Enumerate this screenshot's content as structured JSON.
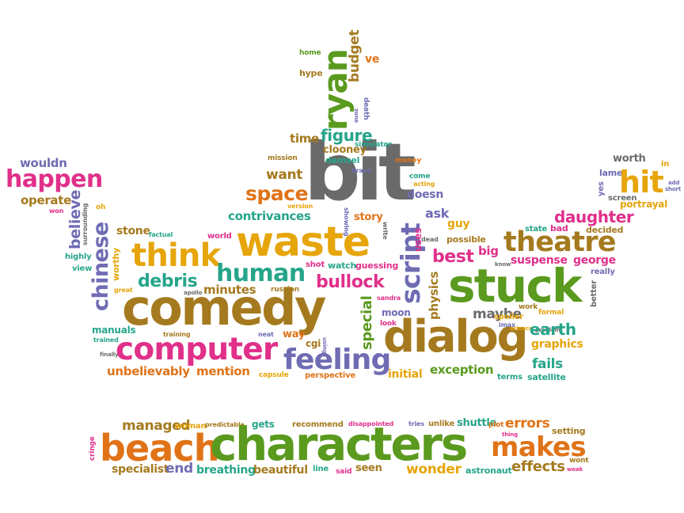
{
  "palette": {
    "gray": "#6a6a6a",
    "olive": "#a57a1f",
    "gold": "#e6a50a",
    "green": "#5a9a1e",
    "teal": "#26a58a",
    "purple": "#6f6cb4",
    "magenta": "#e0308a",
    "orange": "#e07318"
  },
  "words": [
    {
      "text": "bit",
      "c": "gray"
    },
    {
      "text": "ryan",
      "c": "green"
    },
    {
      "text": "budget",
      "c": "olive"
    },
    {
      "text": "ve",
      "c": "orange"
    },
    {
      "text": "home",
      "c": "green"
    },
    {
      "text": "hype",
      "c": "olive"
    },
    {
      "text": "death",
      "c": "purple"
    },
    {
      "text": "zone",
      "c": "purple"
    },
    {
      "text": "figure",
      "c": "teal"
    },
    {
      "text": "time",
      "c": "olive"
    },
    {
      "text": "clooney",
      "c": "olive"
    },
    {
      "text": "simulator",
      "c": "teal"
    },
    {
      "text": "mission",
      "c": "olive"
    },
    {
      "text": "damsel",
      "c": "teal"
    },
    {
      "text": "money",
      "c": "orange"
    },
    {
      "text": "brave",
      "c": "purple"
    },
    {
      "text": "want",
      "c": "olive"
    },
    {
      "text": "version",
      "c": "gold"
    },
    {
      "text": "space",
      "c": "orange"
    },
    {
      "text": "come",
      "c": "teal"
    },
    {
      "text": "acting",
      "c": "gold"
    },
    {
      "text": "doesn",
      "c": "purple"
    },
    {
      "text": "script",
      "c": "purple"
    },
    {
      "text": "contrivances",
      "c": "teal"
    },
    {
      "text": "story",
      "c": "orange"
    },
    {
      "text": "showing",
      "c": "purple"
    },
    {
      "text": "write",
      "c": "gray"
    },
    {
      "text": "ask",
      "c": "purple"
    },
    {
      "text": "dead",
      "c": "gray"
    },
    {
      "text": "uses",
      "c": "magenta"
    },
    {
      "text": "guy",
      "c": "gold"
    },
    {
      "text": "possible",
      "c": "olive"
    },
    {
      "text": "waste",
      "c": "gold"
    },
    {
      "text": "think",
      "c": "gold"
    },
    {
      "text": "human",
      "c": "teal"
    },
    {
      "text": "world",
      "c": "magenta"
    },
    {
      "text": "stone",
      "c": "olive"
    },
    {
      "text": "factual",
      "c": "teal"
    },
    {
      "text": "debris",
      "c": "teal"
    },
    {
      "text": "minutes",
      "c": "olive"
    },
    {
      "text": "worthy",
      "c": "gold"
    },
    {
      "text": "great",
      "c": "gold"
    },
    {
      "text": "apollo",
      "c": "gray"
    },
    {
      "text": "shot",
      "c": "magenta"
    },
    {
      "text": "watch",
      "c": "teal"
    },
    {
      "text": "guessing",
      "c": "magenta"
    },
    {
      "text": "bullock",
      "c": "magenta"
    },
    {
      "text": "russian",
      "c": "olive"
    },
    {
      "text": "comedy",
      "c": "olive"
    },
    {
      "text": "chinese",
      "c": "purple"
    },
    {
      "text": "believe",
      "c": "purple"
    },
    {
      "text": "surrounding",
      "c": "gray"
    },
    {
      "text": "wouldn",
      "c": "purple"
    },
    {
      "text": "happen",
      "c": "magenta"
    },
    {
      "text": "operate",
      "c": "olive"
    },
    {
      "text": "won",
      "c": "magenta"
    },
    {
      "text": "oh",
      "c": "gold"
    },
    {
      "text": "highly",
      "c": "teal"
    },
    {
      "text": "view",
      "c": "teal"
    },
    {
      "text": "manuals",
      "c": "teal"
    },
    {
      "text": "trained",
      "c": "teal"
    },
    {
      "text": "training",
      "c": "olive"
    },
    {
      "text": "finally",
      "c": "gray"
    },
    {
      "text": "computer",
      "c": "magenta"
    },
    {
      "text": "neat",
      "c": "purple"
    },
    {
      "text": "way",
      "c": "orange"
    },
    {
      "text": "cgi",
      "c": "olive"
    },
    {
      "text": "using",
      "c": "purple"
    },
    {
      "text": "feeling",
      "c": "purple"
    },
    {
      "text": "special",
      "c": "green"
    },
    {
      "text": "moon",
      "c": "purple"
    },
    {
      "text": "look",
      "c": "magenta"
    },
    {
      "text": "sandra",
      "c": "magenta"
    },
    {
      "text": "physics",
      "c": "olive"
    },
    {
      "text": "unbelievably",
      "c": "orange"
    },
    {
      "text": "mention",
      "c": "orange"
    },
    {
      "text": "capsule",
      "c": "gold"
    },
    {
      "text": "perspective",
      "c": "orange"
    },
    {
      "text": "initial",
      "c": "gold"
    },
    {
      "text": "dialog",
      "c": "olive"
    },
    {
      "text": "exception",
      "c": "green"
    },
    {
      "text": "best",
      "c": "magenta"
    },
    {
      "text": "big",
      "c": "magenta"
    },
    {
      "text": "know",
      "c": "gray"
    },
    {
      "text": "stuck",
      "c": "green"
    },
    {
      "text": "maybe",
      "c": "gray"
    },
    {
      "text": "spoiler",
      "c": "gold"
    },
    {
      "text": "imax",
      "c": "purple"
    },
    {
      "text": "science",
      "c": "gold"
    },
    {
      "text": "problem",
      "c": "gray"
    },
    {
      "text": "work",
      "c": "olive"
    },
    {
      "text": "formal",
      "c": "gold"
    },
    {
      "text": "earth",
      "c": "teal"
    },
    {
      "text": "graphics",
      "c": "gold"
    },
    {
      "text": "fails",
      "c": "teal"
    },
    {
      "text": "terms",
      "c": "teal"
    },
    {
      "text": "satellite",
      "c": "teal"
    },
    {
      "text": "theatre",
      "c": "olive"
    },
    {
      "text": "suspense",
      "c": "magenta"
    },
    {
      "text": "george",
      "c": "magenta"
    },
    {
      "text": "daughter",
      "c": "magenta"
    },
    {
      "text": "state",
      "c": "teal"
    },
    {
      "text": "bad",
      "c": "magenta"
    },
    {
      "text": "decided",
      "c": "olive"
    },
    {
      "text": "really",
      "c": "purple"
    },
    {
      "text": "better",
      "c": "gray"
    },
    {
      "text": "worth",
      "c": "gray"
    },
    {
      "text": "in",
      "c": "gold"
    },
    {
      "text": "lame",
      "c": "purple"
    },
    {
      "text": "hit",
      "c": "gold"
    },
    {
      "text": "add",
      "c": "purple"
    },
    {
      "text": "short",
      "c": "purple"
    },
    {
      "text": "yes",
      "c": "purple"
    },
    {
      "text": "screen",
      "c": "gray"
    },
    {
      "text": "portrayal",
      "c": "gold"
    },
    {
      "text": "managed",
      "c": "olive"
    },
    {
      "text": "woman",
      "c": "gold"
    },
    {
      "text": "predictable",
      "c": "olive"
    },
    {
      "text": "gets",
      "c": "teal"
    },
    {
      "text": "recommend",
      "c": "olive"
    },
    {
      "text": "disappointed",
      "c": "magenta"
    },
    {
      "text": "tries",
      "c": "purple"
    },
    {
      "text": "unlike",
      "c": "olive"
    },
    {
      "text": "shuttle",
      "c": "teal"
    },
    {
      "text": "plot",
      "c": "orange"
    },
    {
      "text": "errors",
      "c": "orange"
    },
    {
      "text": "thing",
      "c": "magenta"
    },
    {
      "text": "setting",
      "c": "olive"
    },
    {
      "text": "cringe",
      "c": "magenta"
    },
    {
      "text": "beach",
      "c": "orange"
    },
    {
      "text": "characters",
      "c": "green"
    },
    {
      "text": "makes",
      "c": "orange"
    },
    {
      "text": "wont",
      "c": "olive"
    },
    {
      "text": "weak",
      "c": "magenta"
    },
    {
      "text": "specialist",
      "c": "olive"
    },
    {
      "text": "end",
      "c": "purple"
    },
    {
      "text": "breathing",
      "c": "teal"
    },
    {
      "text": "beautiful",
      "c": "olive"
    },
    {
      "text": "line",
      "c": "teal"
    },
    {
      "text": "said",
      "c": "magenta"
    },
    {
      "text": "seen",
      "c": "olive"
    },
    {
      "text": "wonder",
      "c": "gold"
    },
    {
      "text": "astronaut",
      "c": "teal"
    },
    {
      "text": "effects",
      "c": "olive"
    }
  ]
}
